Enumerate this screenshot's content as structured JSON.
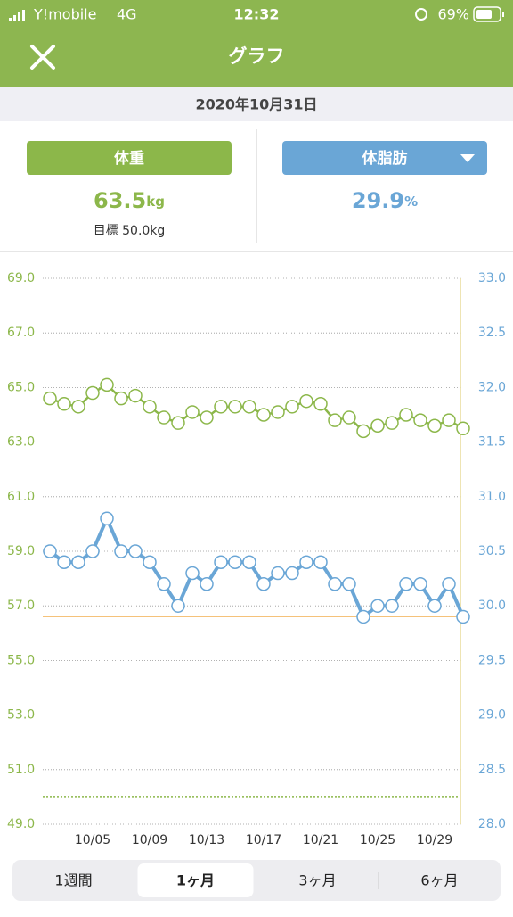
{
  "status_bar": {
    "carrier": "Y!mobile",
    "network": "4G",
    "time": "12:32",
    "battery": "69%"
  },
  "header": {
    "title": "グラフ"
  },
  "date": "2020年10月31日",
  "metrics": {
    "weight": {
      "label": "体重",
      "value": "63.5",
      "unit": "kg",
      "goal": "目標 50.0kg"
    },
    "body_fat": {
      "label": "体脂肪",
      "value": "29.9",
      "unit": "%"
    }
  },
  "chart_data": {
    "type": "line",
    "categories": [
      null,
      null,
      null,
      "10/05",
      null,
      null,
      null,
      "10/09",
      null,
      null,
      null,
      "10/13",
      null,
      null,
      null,
      "10/17",
      null,
      null,
      null,
      "10/21",
      null,
      null,
      null,
      "10/25",
      null,
      null,
      null,
      "10/29",
      null,
      null
    ],
    "series": [
      {
        "name": "体重",
        "color": "#8cb74a",
        "axis": "y",
        "values": [
          64.6,
          64.4,
          64.3,
          64.8,
          65.1,
          64.6,
          64.7,
          64.3,
          63.9,
          63.7,
          64.1,
          63.9,
          64.3,
          64.3,
          64.3,
          64.0,
          64.1,
          64.3,
          64.5,
          64.4,
          63.8,
          63.9,
          63.4,
          63.6,
          63.7,
          64.0,
          63.8,
          63.6,
          63.8,
          63.5
        ]
      },
      {
        "name": "体脂肪",
        "color": "#6aa6d6",
        "axis": "y2",
        "values": [
          30.5,
          30.4,
          30.4,
          30.5,
          30.8,
          30.5,
          30.5,
          30.4,
          30.2,
          30.0,
          30.3,
          30.2,
          30.4,
          30.4,
          30.4,
          30.2,
          30.3,
          30.3,
          30.4,
          30.4,
          30.2,
          30.2,
          29.9,
          30.0,
          30.0,
          30.2,
          30.2,
          30.0,
          30.2,
          29.9
        ]
      }
    ],
    "ylim": [
      49,
      69
    ],
    "yticks": [
      {
        "value": 49,
        "label": "49.0"
      },
      {
        "value": 51,
        "label": "51.0"
      },
      {
        "value": 53,
        "label": "53.0"
      },
      {
        "value": 55,
        "label": "55.0"
      },
      {
        "value": 57,
        "label": "57.0"
      },
      {
        "value": 59,
        "label": "59.0"
      },
      {
        "value": 61,
        "label": "61.0"
      },
      {
        "value": 63,
        "label": "63.0"
      },
      {
        "value": 65,
        "label": "65.0"
      },
      {
        "value": 67,
        "label": "67.0"
      },
      {
        "value": 69,
        "label": "69.0"
      }
    ],
    "y2lim": [
      28,
      33
    ],
    "y2ticks": [
      {
        "value": 28,
        "label": "28.0"
      },
      {
        "value": 28.5,
        "label": "28.5"
      },
      {
        "value": 29,
        "label": "29.0"
      },
      {
        "value": 29.5,
        "label": "29.5"
      },
      {
        "value": 30,
        "label": "30.0"
      },
      {
        "value": 30.5,
        "label": "30.5"
      },
      {
        "value": 31,
        "label": "31.0"
      },
      {
        "value": 31.5,
        "label": "31.5"
      },
      {
        "value": 32,
        "label": "32.0"
      },
      {
        "value": 32.5,
        "label": "32.5"
      },
      {
        "value": 33,
        "label": "33.0"
      }
    ],
    "target_line": {
      "value": 50,
      "axis": "y",
      "color": "#8cb74a"
    },
    "current_line": {
      "value": 29.9,
      "axis": "y2",
      "color": "#f5c27a"
    },
    "grid": true
  },
  "tabs": {
    "items": [
      "1週間",
      "1ヶ月",
      "3ヶ月",
      "6ヶ月"
    ],
    "selected": 1
  }
}
